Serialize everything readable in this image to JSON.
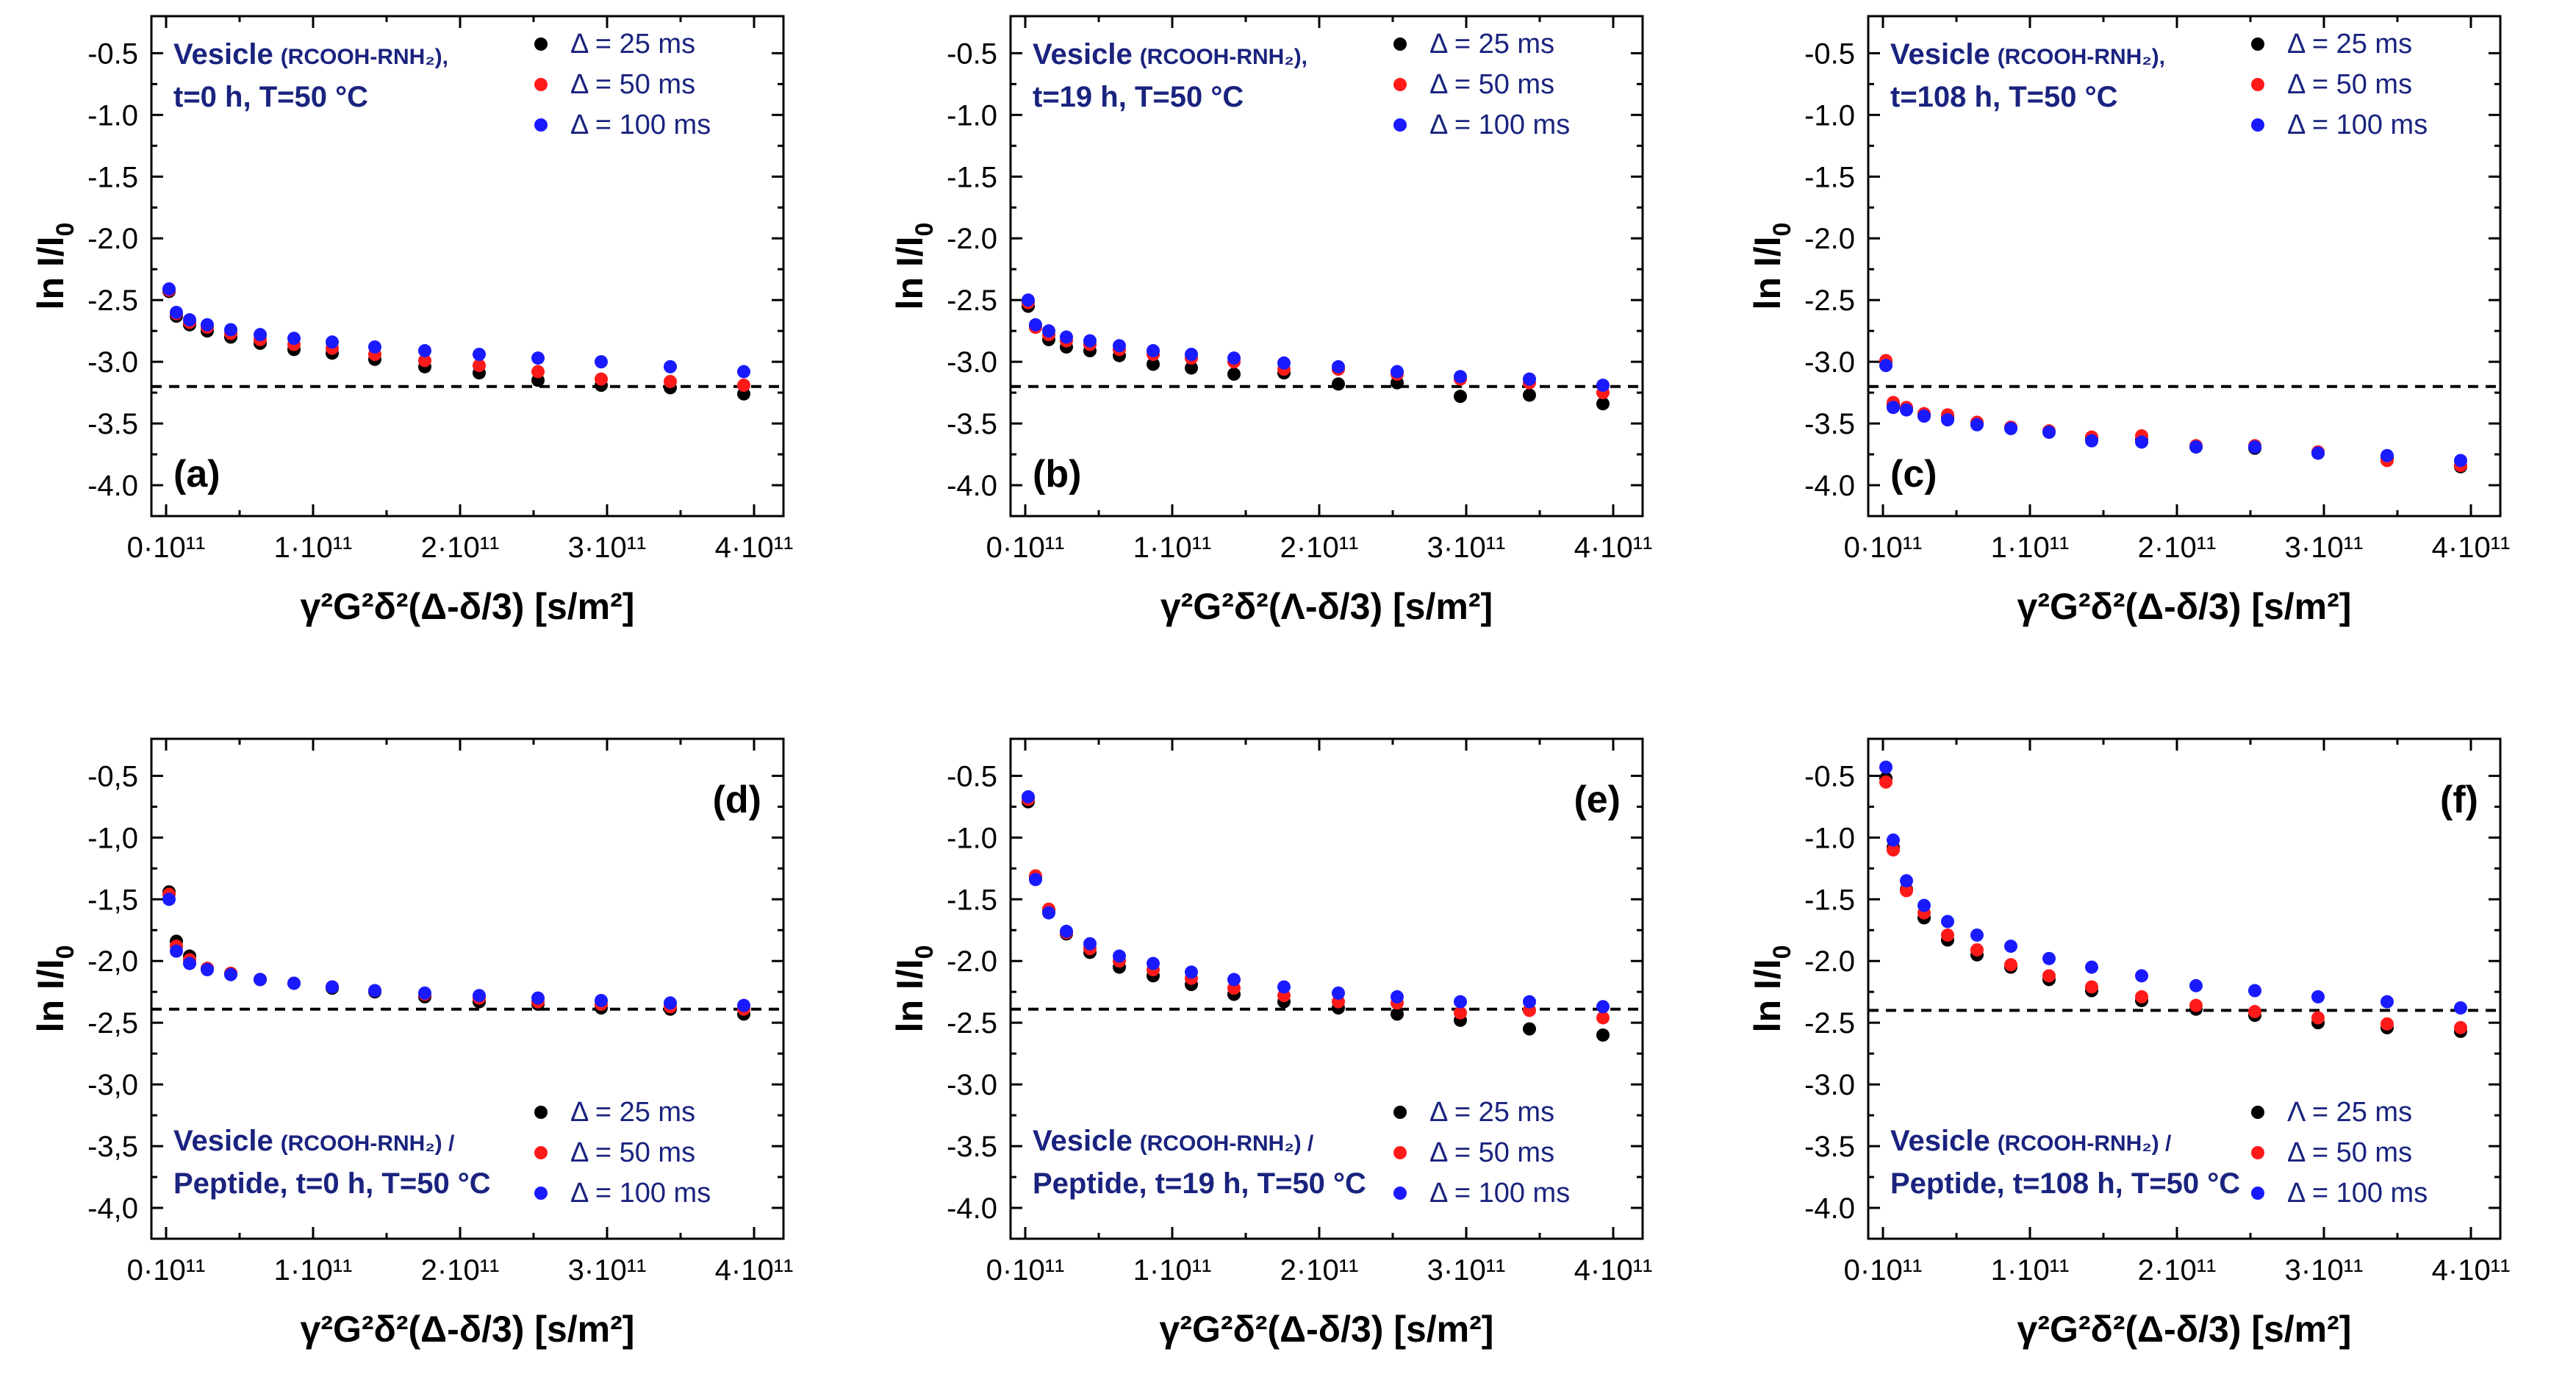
{
  "chart_data": [
    {
      "type": "scatter",
      "panel_label": "(a)",
      "ylabel_main": "ln I/I",
      "ylabel_sub": "0",
      "xlabel": "γ²G²δ²(Δ-δ/3) [s/m²]",
      "xlim": [
        -10000000000.0,
        420000000000.0
      ],
      "ylim": [
        -4.25,
        -0.2
      ],
      "xticks": [
        0,
        100000000000.0,
        200000000000.0,
        300000000000.0,
        400000000000.0
      ],
      "xtick_labels": [
        "0·10¹¹",
        "1·10¹¹",
        "2·10¹¹",
        "3·10¹¹",
        "4·10¹¹"
      ],
      "yticks": [
        -0.5,
        -1.0,
        -1.5,
        -2.0,
        -2.5,
        -3.0,
        -3.5,
        -4.0
      ],
      "ytick_labels": [
        "-0.5",
        "-1.0",
        "-1.5",
        "-2.0",
        "-2.5",
        "-3.0",
        "-3.5",
        "-4.0"
      ],
      "reference_line_y": -3.2,
      "annotation_position": "top-left",
      "annotation_line1": "Vesicle",
      "annotation_line1_small": "(RCOOH-RNH₂),",
      "annotation_line2": "t=0 h, T=50 °C",
      "legend_position": "top-right",
      "label_position": "bottom-left",
      "x": [
        2000000000.0,
        7000000000.0,
        16000000000.0,
        28000000000.0,
        44000000000.0,
        64000000000.0,
        87000000000.0,
        113000000000.0,
        142000000000.0,
        176000000000.0,
        213000000000.0,
        253000000000.0,
        296000000000.0,
        343000000000.0,
        393000000000.0
      ],
      "series": [
        {
          "name": "Δ = 25 ms",
          "color": "#000000",
          "values": [
            -2.43,
            -2.63,
            -2.7,
            -2.75,
            -2.8,
            -2.85,
            -2.9,
            -2.93,
            -2.98,
            -3.04,
            -3.09,
            -3.15,
            -3.19,
            -3.21,
            -3.26
          ]
        },
        {
          "name": "Δ = 50 ms",
          "color": "#ff1a1a",
          "values": [
            -2.42,
            -2.61,
            -2.68,
            -2.72,
            -2.77,
            -2.82,
            -2.86,
            -2.89,
            -2.94,
            -2.99,
            -3.03,
            -3.08,
            -3.14,
            -3.16,
            -3.19
          ]
        },
        {
          "name": "Δ = 100 ms",
          "color": "#1a1aff",
          "values": [
            -2.41,
            -2.6,
            -2.66,
            -2.7,
            -2.74,
            -2.78,
            -2.81,
            -2.84,
            -2.88,
            -2.91,
            -2.94,
            -2.97,
            -3.0,
            -3.04,
            -3.08
          ]
        }
      ]
    },
    {
      "type": "scatter",
      "panel_label": "(b)",
      "ylabel_main": "ln I/I",
      "ylabel_sub": "0",
      "xlabel": "γ²G²δ²(Λ-δ/3) [s/m²]",
      "xlim": [
        -10000000000.0,
        420000000000.0
      ],
      "ylim": [
        -4.25,
        -0.2
      ],
      "xticks": [
        0,
        100000000000.0,
        200000000000.0,
        300000000000.0,
        400000000000.0
      ],
      "xtick_labels": [
        "0·10¹¹",
        "1·10¹¹",
        "2·10¹¹",
        "3·10¹¹",
        "4·10¹¹"
      ],
      "yticks": [
        -0.5,
        -1.0,
        -1.5,
        -2.0,
        -2.5,
        -3.0,
        -3.5,
        -4.0
      ],
      "ytick_labels": [
        "-0.5",
        "-1.0",
        "-1.5",
        "-2.0",
        "-2.5",
        "-3.0",
        "-3.5",
        "-4.0"
      ],
      "reference_line_y": -3.2,
      "annotation_position": "top-left",
      "annotation_line1": "Vesicle",
      "annotation_line1_small": "(RCOOH-RNH₂),",
      "annotation_line2": "t=19 h, T=50 °C",
      "legend_position": "top-right",
      "label_position": "bottom-left",
      "x": [
        2000000000.0,
        7000000000.0,
        16000000000.0,
        28000000000.0,
        44000000000.0,
        64000000000.0,
        87000000000.0,
        113000000000.0,
        142000000000.0,
        176000000000.0,
        213000000000.0,
        253000000000.0,
        296000000000.0,
        343000000000.0,
        393000000000.0
      ],
      "series": [
        {
          "name": "Δ = 25 ms",
          "color": "#000000",
          "values": [
            -2.55,
            -2.72,
            -2.82,
            -2.88,
            -2.91,
            -2.95,
            -3.02,
            -3.05,
            -3.1,
            -3.09,
            -3.18,
            -3.17,
            -3.28,
            -3.27,
            -3.34
          ]
        },
        {
          "name": "Δ = 50 ms",
          "color": "#ff1a1a",
          "values": [
            -2.52,
            -2.72,
            -2.78,
            -2.83,
            -2.86,
            -2.9,
            -2.94,
            -2.97,
            -3.0,
            -3.06,
            -3.06,
            -3.1,
            -3.14,
            -3.17,
            -3.25
          ]
        },
        {
          "name": "Δ = 100 ms",
          "color": "#1a1aff",
          "values": [
            -2.5,
            -2.7,
            -2.75,
            -2.8,
            -2.83,
            -2.87,
            -2.91,
            -2.94,
            -2.97,
            -3.01,
            -3.04,
            -3.08,
            -3.12,
            -3.14,
            -3.19
          ]
        }
      ]
    },
    {
      "type": "scatter",
      "panel_label": "(c)",
      "ylabel_main": "ln I/I",
      "ylabel_sub": "0",
      "xlabel": "γ²G²δ²(Δ-δ/3) [s/m²]",
      "xlim": [
        -10000000000.0,
        420000000000.0
      ],
      "ylim": [
        -4.25,
        -0.2
      ],
      "xticks": [
        0,
        100000000000.0,
        200000000000.0,
        300000000000.0,
        400000000000.0
      ],
      "xtick_labels": [
        "0·10¹¹",
        "1·10¹¹",
        "2·10¹¹",
        "3·10¹¹",
        "4·10¹¹"
      ],
      "yticks": [
        -0.5,
        -1.0,
        -1.5,
        -2.0,
        -2.5,
        -3.0,
        -3.5,
        -4.0
      ],
      "ytick_labels": [
        "-0.5",
        "-1.0",
        "-1.5",
        "-2.0",
        "-2.5",
        "-3.0",
        "-3.5",
        "-4.0"
      ],
      "reference_line_y": -3.2,
      "annotation_position": "top-left",
      "annotation_line1": "Vesicle",
      "annotation_line1_small": "(RCOOH-RNH₂),",
      "annotation_line2": "t=108 h, T=50 °C",
      "legend_position": "top-right",
      "label_position": "bottom-left",
      "x": [
        2000000000.0,
        7000000000.0,
        16000000000.0,
        28000000000.0,
        44000000000.0,
        64000000000.0,
        87000000000.0,
        113000000000.0,
        142000000000.0,
        176000000000.0,
        213000000000.0,
        253000000000.0,
        296000000000.0,
        343000000000.0,
        393000000000.0
      ],
      "series": [
        {
          "name": "Δ = 25 ms",
          "color": "#000000",
          "values": [
            -3.0,
            -3.35,
            -3.38,
            -3.43,
            -3.45,
            -3.5,
            -3.54,
            -3.57,
            -3.62,
            -3.63,
            -3.69,
            -3.7,
            -3.74,
            -3.78,
            -3.85
          ]
        },
        {
          "name": "Δ = 50 ms",
          "color": "#ff1a1a",
          "values": [
            -2.99,
            -3.33,
            -3.37,
            -3.42,
            -3.43,
            -3.49,
            -3.53,
            -3.56,
            -3.61,
            -3.6,
            -3.68,
            -3.68,
            -3.73,
            -3.8,
            -3.84
          ]
        },
        {
          "name": "Δ = 100 ms",
          "color": "#1a1aff",
          "values": [
            -3.03,
            -3.37,
            -3.39,
            -3.44,
            -3.47,
            -3.51,
            -3.54,
            -3.57,
            -3.64,
            -3.65,
            -3.69,
            -3.69,
            -3.74,
            -3.76,
            -3.8
          ]
        }
      ]
    },
    {
      "type": "scatter",
      "panel_label": "(d)",
      "ylabel_main": "ln I/I",
      "ylabel_sub": "0",
      "xlabel": "γ²G²δ²(Δ-δ/3) [s/m²]",
      "xlim": [
        -10000000000.0,
        420000000000.0
      ],
      "ylim": [
        -4.25,
        -0.2
      ],
      "xticks": [
        0,
        100000000000.0,
        200000000000.0,
        300000000000.0,
        400000000000.0
      ],
      "xtick_labels": [
        "0·10¹¹",
        "1·10¹¹",
        "2·10¹¹",
        "3·10¹¹",
        "4·10¹¹"
      ],
      "yticks": [
        -0.5,
        -1.0,
        -1.5,
        -2.0,
        -2.5,
        -3.0,
        -3.5,
        -4.0
      ],
      "ytick_labels": [
        "-0,5",
        "-1,0",
        "-1,5",
        "-2,0",
        "-2,5",
        "-3,0",
        "-3,5",
        "-4,0"
      ],
      "reference_line_y": -2.39,
      "annotation_position": "bottom-left",
      "annotation_line1": "Vesicle",
      "annotation_line1_small": "(RCOOH-RNH₂) /",
      "annotation_line2": "Peptide, t=0 h, T=50 °C",
      "legend_position": "bottom-right",
      "label_position": "top-right",
      "x": [
        2000000000.0,
        7000000000.0,
        16000000000.0,
        28000000000.0,
        44000000000.0,
        64000000000.0,
        87000000000.0,
        113000000000.0,
        142000000000.0,
        176000000000.0,
        213000000000.0,
        253000000000.0,
        296000000000.0,
        343000000000.0,
        393000000000.0
      ],
      "series": [
        {
          "name": "Δ = 25 ms",
          "color": "#000000",
          "values": [
            -1.44,
            -1.84,
            -1.96,
            -2.06,
            -2.1,
            -2.15,
            -2.18,
            -2.22,
            -2.25,
            -2.29,
            -2.33,
            -2.35,
            -2.38,
            -2.39,
            -2.43
          ]
        },
        {
          "name": "Δ = 50 ms",
          "color": "#ff1a1a",
          "values": [
            -1.46,
            -1.88,
            -1.99,
            -2.06,
            -2.1,
            -2.15,
            -2.18,
            -2.21,
            -2.24,
            -2.27,
            -2.3,
            -2.33,
            -2.35,
            -2.37,
            -2.39
          ]
        },
        {
          "name": "Δ = 100 ms",
          "color": "#1a1aff",
          "values": [
            -1.5,
            -1.92,
            -2.02,
            -2.07,
            -2.11,
            -2.15,
            -2.18,
            -2.21,
            -2.24,
            -2.26,
            -2.28,
            -2.3,
            -2.32,
            -2.34,
            -2.36
          ]
        }
      ]
    },
    {
      "type": "scatter",
      "panel_label": "(e)",
      "ylabel_main": "ln I/I",
      "ylabel_sub": "0",
      "xlabel": "γ²G²δ²(Δ-δ/3) [s/m²]",
      "xlim": [
        -10000000000.0,
        420000000000.0
      ],
      "ylim": [
        -4.25,
        -0.2
      ],
      "xticks": [
        0,
        100000000000.0,
        200000000000.0,
        300000000000.0,
        400000000000.0
      ],
      "xtick_labels": [
        "0·10¹¹",
        "1·10¹¹",
        "2·10¹¹",
        "3·10¹¹",
        "4·10¹¹"
      ],
      "yticks": [
        -0.5,
        -1.0,
        -1.5,
        -2.0,
        -2.5,
        -3.0,
        -3.5,
        -4.0
      ],
      "ytick_labels": [
        "-0.5",
        "-1.0",
        "-1.5",
        "-2.0",
        "-2.5",
        "-3.0",
        "-3.5",
        "-4.0"
      ],
      "reference_line_y": -2.39,
      "annotation_position": "bottom-left",
      "annotation_line1": "Vesicle",
      "annotation_line1_small": "(RCOOH-RNH₂) /",
      "annotation_line2": "Peptide, t=19 h, T=50 °C",
      "legend_position": "bottom-right",
      "label_position": "top-right",
      "x": [
        2000000000.0,
        7000000000.0,
        16000000000.0,
        28000000000.0,
        44000000000.0,
        64000000000.0,
        87000000000.0,
        113000000000.0,
        142000000000.0,
        176000000000.0,
        213000000000.0,
        253000000000.0,
        296000000000.0,
        343000000000.0,
        393000000000.0
      ],
      "series": [
        {
          "name": "Δ = 25 ms",
          "color": "#000000",
          "values": [
            -0.71,
            -1.33,
            -1.6,
            -1.78,
            -1.93,
            -2.05,
            -2.12,
            -2.19,
            -2.27,
            -2.33,
            -2.38,
            -2.43,
            -2.48,
            -2.55,
            -2.6
          ]
        },
        {
          "name": "Δ = 50 ms",
          "color": "#ff1a1a",
          "values": [
            -0.69,
            -1.31,
            -1.58,
            -1.77,
            -1.9,
            -2.0,
            -2.07,
            -2.14,
            -2.22,
            -2.28,
            -2.33,
            -2.34,
            -2.42,
            -2.4,
            -2.46
          ]
        },
        {
          "name": "Δ = 100 ms",
          "color": "#1a1aff",
          "values": [
            -0.67,
            -1.34,
            -1.61,
            -1.76,
            -1.86,
            -1.96,
            -2.02,
            -2.09,
            -2.15,
            -2.21,
            -2.26,
            -2.29,
            -2.33,
            -2.33,
            -2.37
          ]
        }
      ]
    },
    {
      "type": "scatter",
      "panel_label": "(f)",
      "ylabel_main": "ln I/I",
      "ylabel_sub": "0",
      "xlabel": "γ²G²δ²(Δ-δ/3) [s/m²]",
      "xlim": [
        -10000000000.0,
        420000000000.0
      ],
      "ylim": [
        -4.25,
        -0.2
      ],
      "xticks": [
        0,
        100000000000.0,
        200000000000.0,
        300000000000.0,
        400000000000.0
      ],
      "xtick_labels": [
        "0·10¹¹",
        "1·10¹¹",
        "2·10¹¹",
        "3·10¹¹",
        "4·10¹¹"
      ],
      "yticks": [
        -0.5,
        -1.0,
        -1.5,
        -2.0,
        -2.5,
        -3.0,
        -3.5,
        -4.0
      ],
      "ytick_labels": [
        "-0.5",
        "-1.0",
        "-1.5",
        "-2.0",
        "-2.5",
        "-3.0",
        "-3.5",
        "-4.0"
      ],
      "reference_line_y": -2.4,
      "annotation_position": "bottom-left",
      "annotation_line1": "Vesicle",
      "annotation_line1_small": "(RCOOH-RNH₂) /",
      "annotation_line2": "Peptide, t=108 h, T=50 °C",
      "legend_position": "bottom-right",
      "label_position": "top-right",
      "x": [
        2000000000.0,
        7000000000.0,
        16000000000.0,
        28000000000.0,
        44000000000.0,
        64000000000.0,
        87000000000.0,
        113000000000.0,
        142000000000.0,
        176000000000.0,
        213000000000.0,
        253000000000.0,
        296000000000.0,
        343000000000.0,
        393000000000.0
      ],
      "series": [
        {
          "name": "Λ = 25 ms",
          "color": "#000000",
          "values": [
            -0.52,
            -1.08,
            -1.42,
            -1.65,
            -1.83,
            -1.95,
            -2.05,
            -2.15,
            -2.24,
            -2.32,
            -2.39,
            -2.44,
            -2.5,
            -2.54,
            -2.57
          ]
        },
        {
          "name": "Δ = 50 ms",
          "color": "#ff1a1a",
          "values": [
            -0.55,
            -1.1,
            -1.43,
            -1.61,
            -1.79,
            -1.91,
            -2.03,
            -2.12,
            -2.21,
            -2.29,
            -2.36,
            -2.41,
            -2.46,
            -2.51,
            -2.54
          ]
        },
        {
          "name": "Δ = 100 ms",
          "color": "#1a1aff",
          "values": [
            -0.43,
            -1.02,
            -1.35,
            -1.55,
            -1.68,
            -1.79,
            -1.88,
            -1.98,
            -2.05,
            -2.12,
            -2.2,
            -2.24,
            -2.29,
            -2.33,
            -2.38
          ]
        }
      ]
    }
  ]
}
